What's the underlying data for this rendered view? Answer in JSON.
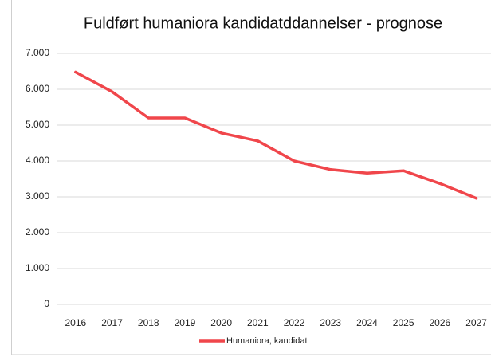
{
  "chart_data": {
    "type": "line",
    "title": "Fuldført humaniora kandidatddannelser - prognose",
    "categories": [
      "2016",
      "2017",
      "2018",
      "2019",
      "2020",
      "2021",
      "2022",
      "2023",
      "2024",
      "2025",
      "2026",
      "2027"
    ],
    "series": [
      {
        "name": "Humaniora, kandidat",
        "color": "#f0464b",
        "values": [
          6480,
          5930,
          5200,
          5200,
          4780,
          4560,
          4000,
          3760,
          3660,
          3730,
          3370,
          2960
        ]
      }
    ],
    "ylim": [
      0,
      7000
    ],
    "yticks": [
      0,
      {
        "value": 1000,
        "label": "1.000"
      },
      {
        "value": 2000,
        "label": "2.000"
      },
      {
        "value": 3000,
        "label": "3.000"
      },
      {
        "value": 4000,
        "label": "4.000"
      },
      {
        "value": 5000,
        "label": "5.000"
      },
      {
        "value": 6000,
        "label": "6.000"
      },
      {
        "value": 7000,
        "label": "7.000"
      }
    ],
    "grid": true,
    "legend": "bottom"
  }
}
